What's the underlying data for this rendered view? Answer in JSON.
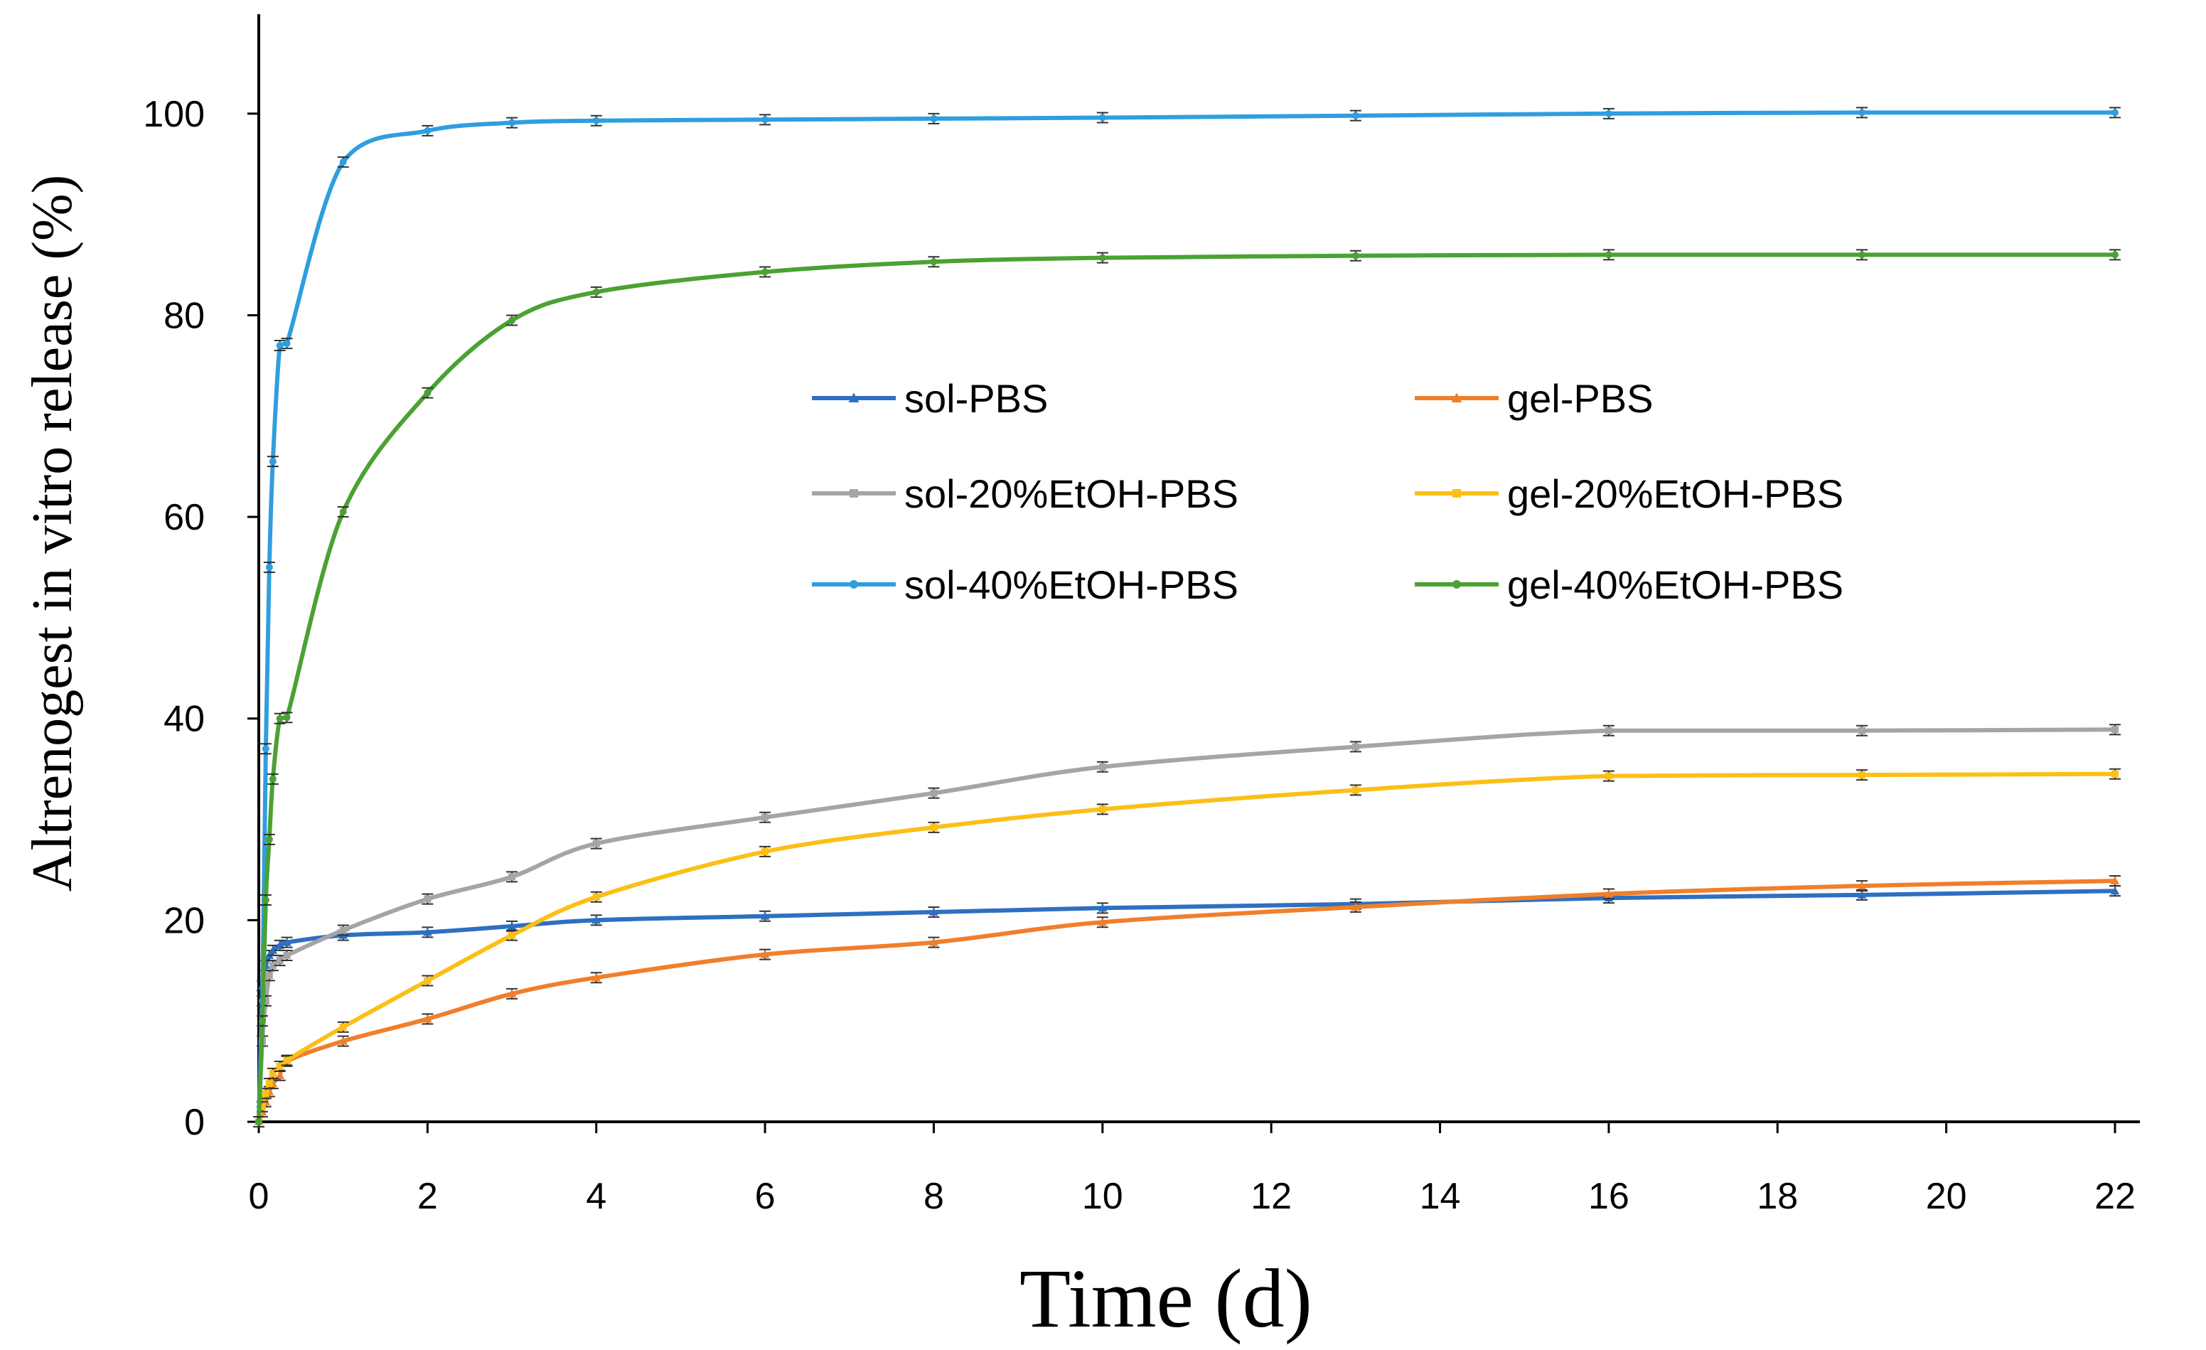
{
  "chart_data": {
    "type": "line",
    "title": "",
    "xlabel": "Time (d)",
    "ylabel": "Altrenogest  in vitro release (%)",
    "xlim": [
      0,
      22
    ],
    "ylim": [
      0,
      110
    ],
    "xticks": [
      0,
      2,
      4,
      6,
      8,
      10,
      12,
      14,
      16,
      18,
      20,
      22
    ],
    "yticks": [
      0,
      20,
      40,
      60,
      80,
      100
    ],
    "grid": false,
    "legend_position": "center",
    "x": [
      0,
      0.042,
      0.083,
      0.125,
      0.167,
      0.25,
      0.333,
      1,
      2,
      3,
      4,
      6,
      8,
      10,
      13,
      16,
      19,
      22
    ],
    "series": [
      {
        "name": "sol-PBS",
        "color": "#2e6fc2",
        "marker": "triangle",
        "values": [
          0,
          13.5,
          15.5,
          16.5,
          17.0,
          17.5,
          17.8,
          18.5,
          18.8,
          19.4,
          20.0,
          20.4,
          20.8,
          21.2,
          21.6,
          22.2,
          22.5,
          22.9
        ]
      },
      {
        "name": "gel-PBS",
        "color": "#f07f2b",
        "marker": "triangle",
        "values": [
          0,
          1.0,
          2.0,
          3.0,
          3.8,
          4.6,
          6.0,
          8.0,
          10.2,
          12.7,
          14.3,
          16.6,
          17.8,
          19.8,
          21.3,
          22.6,
          23.4,
          23.9
        ]
      },
      {
        "name": "sol-20%EtOH-PBS",
        "color": "#a5a5a5",
        "marker": "square",
        "values": [
          0,
          8.0,
          12.0,
          14.5,
          15.5,
          16.0,
          16.5,
          19.0,
          22.1,
          24.3,
          27.6,
          30.2,
          32.6,
          35.2,
          37.2,
          38.8,
          38.8,
          38.9
        ]
      },
      {
        "name": "gel-20%EtOH-PBS",
        "color": "#fcbf16",
        "marker": "square",
        "values": [
          0,
          1.5,
          2.8,
          3.8,
          4.8,
          5.5,
          6.1,
          9.4,
          14.0,
          18.5,
          22.3,
          26.8,
          29.2,
          31.0,
          32.9,
          34.3,
          34.4,
          34.5
        ]
      },
      {
        "name": "sol-40%EtOH-PBS",
        "color": "#2f9ee0",
        "marker": "circle",
        "values": [
          0,
          12.0,
          37.0,
          55.0,
          65.5,
          77.0,
          77.2,
          95.2,
          98.3,
          99.1,
          99.3,
          99.4,
          99.5,
          99.6,
          99.8,
          100.0,
          100.1,
          100.1
        ]
      },
      {
        "name": "gel-40%EtOH-PBS",
        "color": "#4aa233",
        "marker": "circle",
        "values": [
          0,
          10.0,
          22.0,
          28.0,
          34.0,
          40.0,
          40.1,
          60.5,
          72.3,
          79.5,
          82.3,
          84.3,
          85.3,
          85.7,
          85.9,
          86.0,
          86.0,
          86.0
        ]
      }
    ]
  }
}
